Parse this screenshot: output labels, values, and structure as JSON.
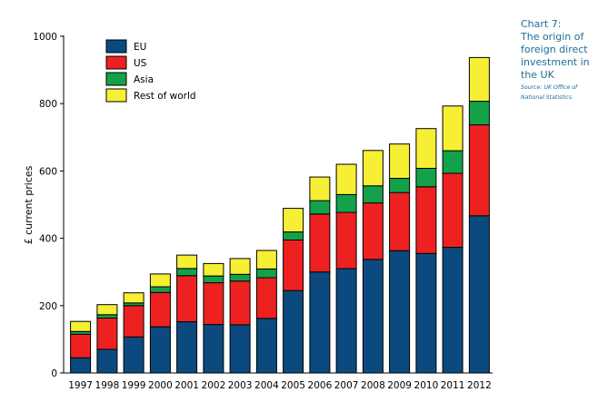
{
  "caption": {
    "title_lines": [
      "Chart 7:",
      "The origin of",
      "foreign direct",
      "investment in",
      "the UK"
    ],
    "source_lines": [
      "Source: UK Office of",
      "National Statistics."
    ]
  },
  "colors": {
    "EU": "#0b4a7e",
    "US": "#ee2121",
    "Asia": "#13a24a",
    "Rest of world": "#f7ef34"
  },
  "chart_data": {
    "type": "bar",
    "stacked": true,
    "title": "The origin of foreign direct investment in the UK",
    "xlabel": "",
    "ylabel": "£ current prices",
    "ylim": [
      0,
      1000
    ],
    "yticks": [
      0,
      200,
      400,
      600,
      800,
      1000
    ],
    "legend_position": "top-left",
    "categories": [
      "1997",
      "1998",
      "1999",
      "2000",
      "2001",
      "2002",
      "2003",
      "2004",
      "2005",
      "2006",
      "2007",
      "2008",
      "2009",
      "2010",
      "2011",
      "2012"
    ],
    "series": [
      {
        "name": "EU",
        "values": [
          45,
          70,
          107,
          137,
          152,
          144,
          143,
          162,
          245,
          300,
          310,
          337,
          363,
          355,
          373,
          467
        ]
      },
      {
        "name": "US",
        "values": [
          70,
          93,
          93,
          102,
          137,
          124,
          130,
          121,
          150,
          172,
          167,
          168,
          173,
          198,
          220,
          270
        ]
      },
      {
        "name": "Asia",
        "values": [
          8,
          10,
          8,
          17,
          21,
          20,
          20,
          26,
          24,
          40,
          53,
          51,
          42,
          55,
          67,
          70
        ]
      },
      {
        "name": "Rest of world",
        "values": [
          30,
          30,
          30,
          38,
          40,
          37,
          47,
          55,
          70,
          70,
          90,
          105,
          102,
          118,
          133,
          130
        ]
      }
    ]
  }
}
